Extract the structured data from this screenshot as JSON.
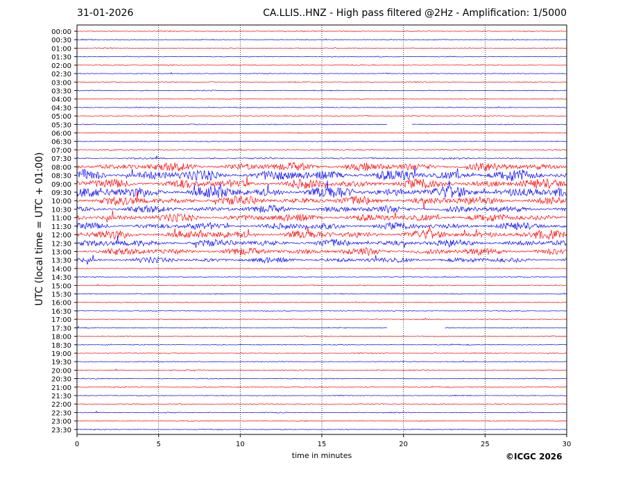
{
  "header": {
    "date": "31-01-2026",
    "title": "CA.LLIS..HNZ - High pass filtered @2Hz - Amplification: 1/5000"
  },
  "chart_data": {
    "type": "line",
    "title": "CA.LLIS..HNZ - High pass filtered @2Hz - Amplification: 1/5000",
    "date": "31-01-2026",
    "xlabel": "time in minutes",
    "ylabel": "UTC (local time = UTC + 01:00)",
    "xlim": [
      0,
      30
    ],
    "x_ticks": [
      "0",
      "5",
      "10",
      "15",
      "20",
      "25",
      "30"
    ],
    "x_tick_values": [
      0,
      5,
      10,
      15,
      20,
      25,
      30
    ],
    "grid": "vertical dotted at 5-minute intervals",
    "trace_colors": [
      "#ff0000",
      "#0000ff"
    ],
    "rows": [
      "00:00",
      "00:30",
      "01:00",
      "01:30",
      "02:00",
      "02:30",
      "03:00",
      "03:30",
      "04:00",
      "04:30",
      "05:00",
      "05:30",
      "06:00",
      "06:30",
      "07:00",
      "07:30",
      "08:00",
      "08:30",
      "09:00",
      "09:30",
      "10:00",
      "10:30",
      "11:00",
      "11:30",
      "12:00",
      "12:30",
      "13:00",
      "13:30",
      "14:00",
      "14:30",
      "15:00",
      "15:30",
      "16:00",
      "16:30",
      "17:00",
      "17:30",
      "18:00",
      "18:30",
      "19:00",
      "19:30",
      "20:00",
      "20:30",
      "21:00",
      "21:30",
      "22:00",
      "22:30",
      "23:00",
      "23:30"
    ],
    "relative_amplitude": [
      0.05,
      0.05,
      0.05,
      0.05,
      0.05,
      0.05,
      0.05,
      0.05,
      0.05,
      0.05,
      0.05,
      0.05,
      0.05,
      0.05,
      0.06,
      0.1,
      0.55,
      0.7,
      0.6,
      0.75,
      0.55,
      0.45,
      0.5,
      0.45,
      0.55,
      0.45,
      0.45,
      0.35,
      0.05,
      0.05,
      0.05,
      0.05,
      0.05,
      0.05,
      0.05,
      0.05,
      0.05,
      0.05,
      0.05,
      0.05,
      0.05,
      0.05,
      0.05,
      0.05,
      0.05,
      0.05,
      0.05,
      0.05
    ],
    "data_gaps": [
      {
        "row": "05:30",
        "from_min": 19.0,
        "to_min": 20.5
      },
      {
        "row": "17:30",
        "from_min": 19.0,
        "to_min": 22.5
      }
    ]
  },
  "footer": {
    "copyright": "©ICGC 2026"
  }
}
